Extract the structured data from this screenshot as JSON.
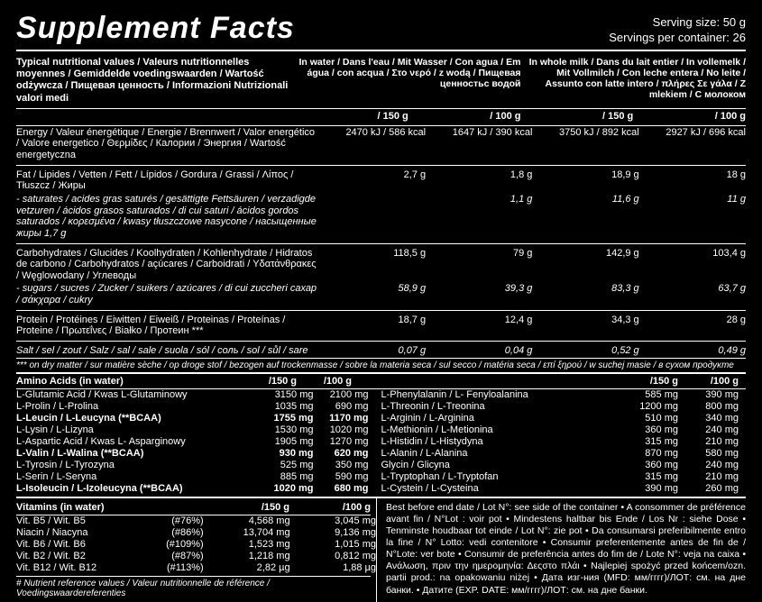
{
  "header": {
    "title": "Supplement Facts",
    "serving_size": "Serving size: 50 g",
    "servings_per": "Servings per container: 26"
  },
  "top": {
    "left": "Typical nutritional values / Valeurs nutritionnelles moyennes / Gemiddelde voedingswaarden / Wartość odżywcza / Пищевая ценность / Informazioni Nutrizionali valori medi",
    "col1": "In water / Dans l'eau / Mit Wasser / Con agua / Em água / con acqua / Στο νερό / z wodą / Пищевая ценностьс водой",
    "col2": "In whole milk / Dans du lait entier / In vollemelk / Mit Vollmilch / Con leche entera / No leite / Assunto con latte intero / πλήρες Σε γάλα / Z mlekiem / С молоком"
  },
  "per": {
    "c1": "/ 150 g",
    "c2": "/ 100 g",
    "c3": "/ 150 g",
    "c4": "/ 100 g"
  },
  "nut": [
    {
      "label": "Energy / Valeur énergétique / Energie / Brennwert / Valor energético / Valore energetico / Θερμίδες / Калории / Энергия / Wartość energetyczna",
      "v": [
        "2470 kJ / 586 kcal",
        "1647 kJ / 390 kcal",
        "3750 kJ / 892 kcal",
        "2927 kJ / 696 kcal"
      ],
      "sep": true
    },
    {
      "label": "Fat / Lipides / Vetten / Fett / Lípidos / Gordura / Grassi / Λίπος / Tłuszcz / Жиры",
      "v": [
        "2,7 g",
        "1,8 g",
        "18,9 g",
        "18 g"
      ]
    },
    {
      "label": "- saturates / acides gras saturés / gesättigte Fettsäuren / verzadigde vetzuren / ácidos grasos saturados / di cui saturi / ácidos gordos saturados / κορεσμένα / kwasy tłuszczowe nasycone / насыщенные жиры   1,7 g",
      "v": [
        "",
        "1,1 g",
        "11,6 g",
        "11 g"
      ],
      "ital": true,
      "sep": true
    },
    {
      "label": "Carbohydrates / Glucides / Koolhydraten / Kohlenhydrate / Hidratos de carbono / Carbohydratos / açúcares / Carboidrati / Υδατάνθρακες / Węglowodany / Углеводы",
      "v": [
        "118,5 g",
        "79 g",
        "142,9 g",
        "103,4 g"
      ]
    },
    {
      "label": "- sugars / sucres / Zucker / suikers / azúcares / di cui zuccheri сахар / σάκχαρα / cukry",
      "v": [
        "58,9 g",
        "39,3 g",
        "83,3 g",
        "63,7 g"
      ],
      "ital": true,
      "sep": true
    },
    {
      "label": "Protein / Protéines / Eiwitten / Eiweiß / Proteinas / Proteínas / Proteine / Πρωτεΐνες / Białko / Протеин ***",
      "v": [
        "18,7 g",
        "12,4 g",
        "34,3 g",
        "28 g"
      ],
      "sep": true
    },
    {
      "label": "Salt / sel / zout / Salz / sal / sale / suola / sól / соль / sol / sůl / sare",
      "v": [
        "0,07 g",
        "0,04 g",
        "0,52 g",
        "0,49 g"
      ],
      "ital": true
    }
  ],
  "nutnote": "*** on dry matter / sur matière sèche / op droge stof / bezogen auf trockenmasse / sobre la materia seca / sul secco / matéria seca / επί ξηρού / w suchej masie / в сухом продукте",
  "aa_hdr": {
    "l": "Amino Acids  (in water)",
    "c1": "/150 g",
    "c2": "/100 g",
    "rc1": "/150 g",
    "rc2": "/100 g"
  },
  "aa_left": [
    {
      "n": "L-Glutamic Acid / Kwas L-Glutaminowy",
      "v1": "3150 mg",
      "v2": "2100 mg"
    },
    {
      "n": "L-Prolin / L-Prolina",
      "v1": "1035 mg",
      "v2": "690 mg"
    },
    {
      "n": "L-Leucin / L-Leucyna (**BCAA)",
      "v1": "1755 mg",
      "v2": "1170 mg",
      "b": true
    },
    {
      "n": "L-Lysin / L-Lizyna",
      "v1": "1530 mg",
      "v2": "1020 mg"
    },
    {
      "n": "L-Aspartic Acid / Kwas  L- Asparginowy",
      "v1": "1905 mg",
      "v2": "1270 mg"
    },
    {
      "n": "L-Valin / L-Walina (**BCAA)",
      "v1": "930 mg",
      "v2": "620 mg",
      "b": true
    },
    {
      "n": "L-Tyrosin / L-Tyrozyna",
      "v1": "525 mg",
      "v2": "350 mg"
    },
    {
      "n": "L-Serin / L-Seryna",
      "v1": "885 mg",
      "v2": "590 mg"
    },
    {
      "n": "L-Isoleucin / L-Izoleucyna (**BCAA)",
      "v1": "1020 mg",
      "v2": "680 mg",
      "b": true
    }
  ],
  "aa_right": [
    {
      "n": "L-Phenylalanin / L- Fenyloalanina",
      "v1": "585 mg",
      "v2": "390 mg"
    },
    {
      "n": "L-Threonin / L-Treonina",
      "v1": "1200 mg",
      "v2": "800 mg"
    },
    {
      "n": "L-Arginin / L-Arginina",
      "v1": "510 mg",
      "v2": "340 mg"
    },
    {
      "n": "L-Methionin / L-Metionina",
      "v1": "360 mg",
      "v2": "240 mg"
    },
    {
      "n": "L-Histidin / L-Histydyna",
      "v1": "315 mg",
      "v2": "210 mg"
    },
    {
      "n": "L-Alanin / L-Alanina",
      "v1": "870 mg",
      "v2": "580 mg"
    },
    {
      "n": "Glycin / Glicyna",
      "v1": "360 mg",
      "v2": "240 mg"
    },
    {
      "n": "L-Tryptophan / L-Tryptofan",
      "v1": "315 mg",
      "v2": "210 mg"
    },
    {
      "n": "L-Cystein / L-Cysteina",
      "v1": "390 mg",
      "v2": "260 mg"
    }
  ],
  "vit_hdr": {
    "l": "Vitamins  (in water)",
    "c1": "/150 g",
    "c2": "/100 g"
  },
  "vit": [
    {
      "n": "Vit. B5 / Wit. B5",
      "p": "(#76%)",
      "v1": "4,568 mg",
      "v2": "3,045 mg"
    },
    {
      "n": "Niacin / Niacyna",
      "p": "(#86%)",
      "v1": "13,704 mg",
      "v2": "9,136 mg"
    },
    {
      "n": "Vit. B6 / Wit. B6",
      "p": "(#109%)",
      "v1": "1,523 mg",
      "v2": "1,015 mg"
    },
    {
      "n": "Vit. B2 / Wit. B2",
      "p": "(#87%)",
      "v1": "1,218 mg",
      "v2": "0,812 mg"
    },
    {
      "n": "Vit. B12 / Wit. B12",
      "p": "(#113%)",
      "v1": "2,82 µg",
      "v2": "1,88 µg"
    }
  ],
  "vitnote": "# Nutrient reference values / Valeur nutritionnelle de référence / Voedingswaardereferenties",
  "bbtext": "Best before end date / Lot N°: see side of the container • A consommer de préférence avant fin / N°Lot : voir pot • Mindestens haltbar bis Ende / Los Nr : siehe Dose • Tenminste houdbaar tot einde / Lot N°: zie pot • Da consumarsi preferibilmente entro la fine / N° Lotto: vedi contenitore • Consumir preferentemente antes de fin de / N°Lote: ver bote • Consumir de preferência antes do fim de / Lote N°: veja na caixa • Ανάλωση, πριν την ημερομηνία: Δεςστο πλάι • Najlepiej spożyć przed końcem/ozn. partii prod.: na opakowaniu niżej • Дата изг-ния (MFD: мм/гггг)/ЛОТ: см. на дне банки. • Датите (EXP. DATE: мм/гггг)/ЛОТ: см. на дне банки."
}
